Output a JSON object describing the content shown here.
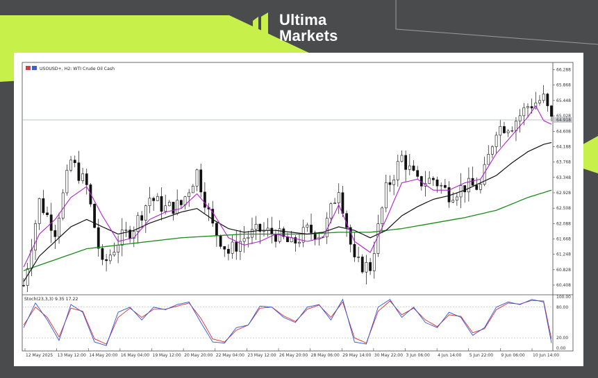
{
  "brand": {
    "line1": "Ultima",
    "line2": "Markets"
  },
  "colors": {
    "accent": "#c8f04a",
    "candle": "#111111",
    "fast_ma": "#b020d0",
    "slow_ma": "#111111",
    "long_ma": "#1a8a1a",
    "stoch_main": "#2a52e0",
    "stoch_signal": "#e02a2a"
  },
  "header": {
    "symbol": "USOUSD+, H2:  WTI Crude Oil Cash",
    "icons": [
      "chart-grid-icon",
      "chart-bars-icon"
    ]
  },
  "stoch_header": "Stoch(23,3,3) 9.35 17.22",
  "chart_data": {
    "type": "candlestick",
    "symbol": "USOUSD+",
    "timeframe": "H2",
    "title": "WTI Crude Oil Cash",
    "price_axis_labels": [
      "66.288",
      "65.868",
      "65.448",
      "65.028",
      "64.608",
      "64.188",
      "63.768",
      "63.348",
      "62.928",
      "62.508",
      "62.088",
      "61.668",
      "61.248",
      "60.828",
      "60.408"
    ],
    "ylim": [
      60.2,
      66.45
    ],
    "current_price": 64.918,
    "current_price_label": "64.918",
    "x_labels": [
      "12 May 2025",
      "13 May 12:00",
      "14 May 20:00",
      "16 May 04:00",
      "19 May 12:00",
      "20 May 20:00",
      "22 May 04:00",
      "23 May 12:00",
      "26 May 20:00",
      "28 May 06:00",
      "29 May 14:00",
      "30 May 22:00",
      "3 Jun 06:00",
      "4 Jun 14:00",
      "5 Jun 22:00",
      "9 Jun 06:00",
      "10 Jun 14:00"
    ],
    "close_path": [
      [
        0,
        60.4
      ],
      [
        4,
        62.7
      ],
      [
        8,
        61.9
      ],
      [
        12,
        63.8
      ],
      [
        16,
        63.1
      ],
      [
        20,
        60.9
      ],
      [
        24,
        61.6
      ],
      [
        28,
        62.0
      ],
      [
        32,
        62.8
      ],
      [
        36,
        62.5
      ],
      [
        40,
        62.6
      ],
      [
        44,
        63.5
      ],
      [
        48,
        62.0
      ],
      [
        52,
        61.3
      ],
      [
        56,
        61.7
      ],
      [
        60,
        61.9
      ],
      [
        64,
        61.8
      ],
      [
        68,
        61.5
      ],
      [
        72,
        61.9
      ],
      [
        76,
        61.8
      ],
      [
        80,
        63.1
      ],
      [
        84,
        61.0
      ],
      [
        88,
        60.9
      ],
      [
        92,
        63.0
      ],
      [
        96,
        63.9
      ],
      [
        100,
        63.2
      ],
      [
        104,
        63.3
      ],
      [
        108,
        62.9
      ],
      [
        112,
        63.1
      ],
      [
        116,
        63.1
      ],
      [
        120,
        64.7
      ],
      [
        124,
        64.8
      ],
      [
        128,
        65.3
      ],
      [
        132,
        65.5
      ],
      [
        134,
        64.9
      ]
    ],
    "fast_ma": [
      [
        0,
        60.9
      ],
      [
        4,
        61.8
      ],
      [
        8,
        62.2
      ],
      [
        12,
        62.8
      ],
      [
        16,
        63.1
      ],
      [
        20,
        62.3
      ],
      [
        24,
        61.6
      ],
      [
        28,
        61.7
      ],
      [
        32,
        62.2
      ],
      [
        36,
        62.4
      ],
      [
        40,
        62.5
      ],
      [
        44,
        62.9
      ],
      [
        48,
        62.4
      ],
      [
        52,
        61.7
      ],
      [
        56,
        61.5
      ],
      [
        60,
        61.6
      ],
      [
        64,
        61.8
      ],
      [
        68,
        61.7
      ],
      [
        72,
        61.6
      ],
      [
        76,
        61.7
      ],
      [
        80,
        62.6
      ],
      [
        84,
        61.6
      ],
      [
        88,
        61.3
      ],
      [
        92,
        62.2
      ],
      [
        96,
        63.2
      ],
      [
        100,
        63.3
      ],
      [
        104,
        63.0
      ],
      [
        108,
        63.0
      ],
      [
        112,
        63.2
      ],
      [
        116,
        63.3
      ],
      [
        120,
        64.0
      ],
      [
        124,
        64.5
      ],
      [
        128,
        65.0
      ],
      [
        130,
        65.3
      ],
      [
        132,
        64.9
      ],
      [
        134,
        64.8
      ]
    ],
    "slow_ma": [
      [
        0,
        60.5
      ],
      [
        4,
        61.2
      ],
      [
        8,
        61.6
      ],
      [
        12,
        62.0
      ],
      [
        16,
        62.2
      ],
      [
        20,
        62.0
      ],
      [
        24,
        61.8
      ],
      [
        28,
        61.9
      ],
      [
        32,
        62.1
      ],
      [
        36,
        62.25
      ],
      [
        40,
        62.4
      ],
      [
        44,
        62.5
      ],
      [
        48,
        62.2
      ],
      [
        52,
        61.95
      ],
      [
        56,
        61.85
      ],
      [
        60,
        61.9
      ],
      [
        64,
        61.9
      ],
      [
        68,
        61.85
      ],
      [
        72,
        61.8
      ],
      [
        76,
        61.85
      ],
      [
        80,
        62.0
      ],
      [
        84,
        61.9
      ],
      [
        88,
        61.7
      ],
      [
        92,
        61.9
      ],
      [
        96,
        62.3
      ],
      [
        100,
        62.55
      ],
      [
        104,
        62.75
      ],
      [
        108,
        62.85
      ],
      [
        112,
        63.0
      ],
      [
        116,
        63.2
      ],
      [
        120,
        63.4
      ],
      [
        124,
        63.75
      ],
      [
        128,
        64.05
      ],
      [
        132,
        64.25
      ],
      [
        134,
        64.3
      ]
    ],
    "long_ma": [
      [
        0,
        60.8
      ],
      [
        8,
        61.1
      ],
      [
        16,
        61.4
      ],
      [
        24,
        61.5
      ],
      [
        32,
        61.6
      ],
      [
        40,
        61.7
      ],
      [
        48,
        61.75
      ],
      [
        56,
        61.8
      ],
      [
        64,
        61.8
      ],
      [
        72,
        61.8
      ],
      [
        80,
        61.85
      ],
      [
        88,
        61.85
      ],
      [
        96,
        61.95
      ],
      [
        104,
        62.1
      ],
      [
        112,
        62.25
      ],
      [
        120,
        62.45
      ],
      [
        128,
        62.8
      ],
      [
        134,
        63.0
      ]
    ],
    "stochastic": {
      "ylim": [
        0,
        100
      ],
      "levels": [
        80,
        20
      ],
      "level_labels": [
        "100.00",
        "80.00",
        "20.00",
        "0.00"
      ],
      "main": [
        [
          0,
          40
        ],
        [
          3,
          88
        ],
        [
          6,
          55
        ],
        [
          9,
          15
        ],
        [
          12,
          85
        ],
        [
          15,
          70
        ],
        [
          18,
          12
        ],
        [
          21,
          5
        ],
        [
          24,
          70
        ],
        [
          27,
          80
        ],
        [
          30,
          55
        ],
        [
          33,
          80
        ],
        [
          36,
          75
        ],
        [
          39,
          85
        ],
        [
          42,
          90
        ],
        [
          45,
          50
        ],
        [
          48,
          12
        ],
        [
          51,
          10
        ],
        [
          54,
          40
        ],
        [
          57,
          45
        ],
        [
          60,
          82
        ],
        [
          63,
          80
        ],
        [
          66,
          60
        ],
        [
          69,
          50
        ],
        [
          72,
          80
        ],
        [
          75,
          85
        ],
        [
          78,
          55
        ],
        [
          81,
          95
        ],
        [
          84,
          12
        ],
        [
          87,
          8
        ],
        [
          90,
          80
        ],
        [
          93,
          95
        ],
        [
          96,
          60
        ],
        [
          99,
          80
        ],
        [
          102,
          50
        ],
        [
          105,
          40
        ],
        [
          108,
          70
        ],
        [
          111,
          60
        ],
        [
          114,
          25
        ],
        [
          117,
          40
        ],
        [
          120,
          80
        ],
        [
          123,
          90
        ],
        [
          126,
          85
        ],
        [
          129,
          95
        ],
        [
          132,
          90
        ],
        [
          134,
          10
        ]
      ],
      "signal": [
        [
          0,
          45
        ],
        [
          3,
          80
        ],
        [
          6,
          60
        ],
        [
          9,
          22
        ],
        [
          12,
          78
        ],
        [
          15,
          72
        ],
        [
          18,
          18
        ],
        [
          21,
          8
        ],
        [
          24,
          60
        ],
        [
          27,
          78
        ],
        [
          30,
          60
        ],
        [
          33,
          76
        ],
        [
          36,
          76
        ],
        [
          39,
          82
        ],
        [
          42,
          88
        ],
        [
          45,
          58
        ],
        [
          48,
          18
        ],
        [
          51,
          12
        ],
        [
          54,
          35
        ],
        [
          57,
          45
        ],
        [
          60,
          78
        ],
        [
          63,
          80
        ],
        [
          66,
          63
        ],
        [
          69,
          52
        ],
        [
          72,
          76
        ],
        [
          75,
          84
        ],
        [
          78,
          60
        ],
        [
          81,
          90
        ],
        [
          84,
          20
        ],
        [
          87,
          10
        ],
        [
          90,
          72
        ],
        [
          93,
          92
        ],
        [
          96,
          65
        ],
        [
          99,
          78
        ],
        [
          102,
          55
        ],
        [
          105,
          42
        ],
        [
          108,
          65
        ],
        [
          111,
          62
        ],
        [
          114,
          30
        ],
        [
          117,
          38
        ],
        [
          120,
          75
        ],
        [
          123,
          88
        ],
        [
          126,
          86
        ],
        [
          129,
          93
        ],
        [
          132,
          92
        ],
        [
          134,
          18
        ]
      ]
    }
  }
}
